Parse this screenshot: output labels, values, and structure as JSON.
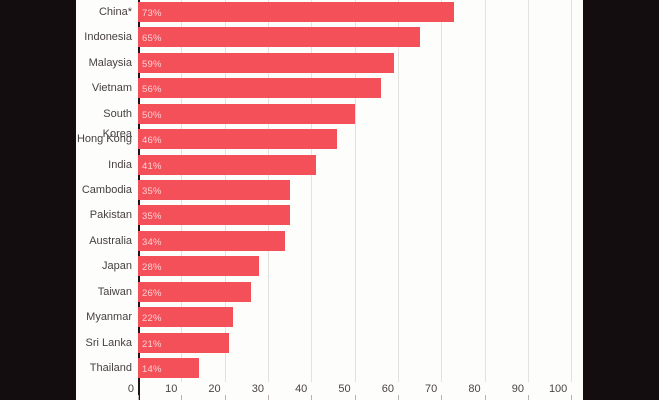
{
  "chart_data": {
    "type": "bar",
    "orientation": "horizontal",
    "title": "",
    "xlabel": "",
    "ylabel": "",
    "categories": [
      "China*",
      "Indonesia",
      "Malaysia",
      "Vietnam",
      "South Korea",
      "Hong Kong",
      "India",
      "Cambodia",
      "Pakistan",
      "Australia",
      "Japan",
      "Taiwan",
      "Myanmar",
      "Sri Lanka",
      "Thailand"
    ],
    "values": [
      73,
      65,
      59,
      56,
      50,
      46,
      41,
      35,
      35,
      34,
      28,
      26,
      22,
      21,
      14
    ],
    "value_labels": [
      "73%",
      "65%",
      "59%",
      "56%",
      "50%",
      "46%",
      "41%",
      "35%",
      "35%",
      "34%",
      "28%",
      "26%",
      "22%",
      "21%",
      "14%"
    ],
    "x_ticks": [
      0,
      10,
      20,
      30,
      40,
      50,
      60,
      70,
      80,
      90,
      100
    ],
    "xlim": [
      0,
      100
    ],
    "grid": "vertical-gridlines",
    "legend": "none"
  },
  "colors": {
    "bar": "#f4505a",
    "letterbox": "#140d0f",
    "plot_background": "#fdfdfc",
    "gridline": "#e4e2e0",
    "axis_line": "#1c1418",
    "category_text": "#474043",
    "tick_text": "#4a4346",
    "bar_value_text": "rgba(255,235,235,0.82)"
  }
}
